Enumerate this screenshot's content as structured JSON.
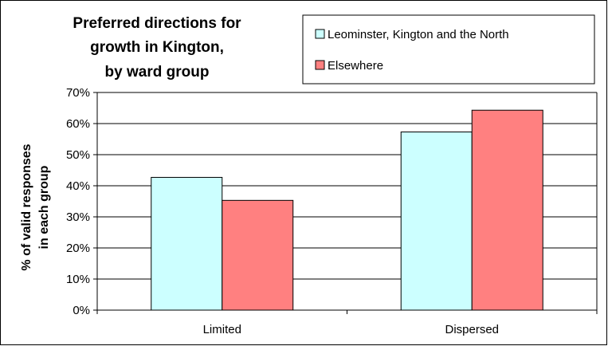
{
  "chart_data": {
    "type": "bar",
    "title_lines": [
      "Preferred directions for",
      "growth in Kington,",
      "by ward group"
    ],
    "ylabel_lines": [
      "% of valid responses",
      "in each group"
    ],
    "xlabel": "",
    "categories": [
      "Limited",
      "Dispersed"
    ],
    "series": [
      {
        "name": "Leominster, Kington and the North",
        "color": "#ccffff",
        "values": [
          42.7,
          57.3
        ]
      },
      {
        "name": "Elsewhere",
        "color": "#ff8080",
        "values": [
          35.3,
          64.3
        ]
      }
    ],
    "ylim": [
      0,
      70
    ],
    "yticks": [
      0,
      10,
      20,
      30,
      40,
      50,
      60,
      70
    ],
    "ytick_labels": [
      "0%",
      "10%",
      "20%",
      "30%",
      "40%",
      "50%",
      "60%",
      "70%"
    ],
    "grid": true,
    "legend_position": "top-right"
  }
}
